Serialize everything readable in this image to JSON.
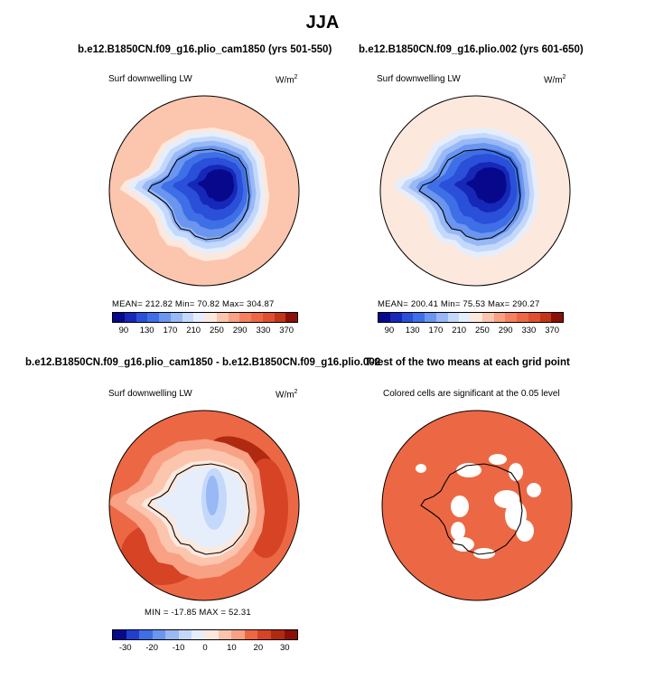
{
  "title": "JJA",
  "panels": [
    {
      "title": "b.e12.B1850CN.f09_g16.plio_cam1850 (yrs 501-550)",
      "variable": "Surf downwelling LW",
      "units": "W/m",
      "units_sup": "2",
      "stats": "MEAN= 212.82   Min=   70.82   Max= 304.87",
      "colorbar_labels": [
        "90",
        "130",
        "170",
        "210",
        "250",
        "290",
        "330",
        "370"
      ]
    },
    {
      "title": "b.e12.B1850CN.f09_g16.plio.002 (yrs 601-650)",
      "variable": "Surf downwelling LW",
      "units": "W/m",
      "units_sup": "2",
      "stats": "MEAN= 200.41   Min=   75.53   Max= 290.27",
      "colorbar_labels": [
        "90",
        "130",
        "170",
        "210",
        "250",
        "290",
        "330",
        "370"
      ]
    },
    {
      "title": "b.e12.B1850CN.f09_g16.plio_cam1850 - b.e12.B1850CN.f09_g16.plio.002",
      "variable": "Surf downwelling LW",
      "units": "W/m",
      "units_sup": "2",
      "stats": "MIN = -17.85  MAX =  52.31",
      "colorbar_labels": [
        "-30",
        "-20",
        "-10",
        "0",
        "10",
        "20",
        "30"
      ]
    },
    {
      "title": "T-test of the two means at each grid point",
      "subtitle": "Colored cells are significant at the 0.05 level"
    }
  ],
  "chart_data": [
    {
      "type": "heatmap",
      "title": "b.e12.B1850CN.f09_g16.plio_cam1850 (yrs 501-550)",
      "variable": "Surf downwelling LW",
      "units": "W/m2",
      "mean": 212.82,
      "min": 70.82,
      "max": 304.87,
      "levels": [
        90,
        130,
        170,
        210,
        250,
        290,
        330,
        370
      ]
    },
    {
      "type": "heatmap",
      "title": "b.e12.B1850CN.f09_g16.plio.002 (yrs 601-650)",
      "variable": "Surf downwelling LW",
      "units": "W/m2",
      "mean": 200.41,
      "min": 75.53,
      "max": 290.27,
      "levels": [
        90,
        130,
        170,
        210,
        250,
        290,
        330,
        370
      ]
    },
    {
      "type": "heatmap",
      "title": "b.e12.B1850CN.f09_g16.plio_cam1850 - b.e12.B1850CN.f09_g16.plio.002",
      "variable": "Surf downwelling LW",
      "units": "W/m2",
      "min": -17.85,
      "max": 52.31,
      "levels": [
        -30,
        -20,
        -10,
        0,
        10,
        20,
        30
      ]
    },
    {
      "type": "heatmap",
      "title": "T-test of the two means at each grid point",
      "note": "Colored cells are significant at the 0.05 level",
      "significance_level": 0.05
    }
  ],
  "colors": {
    "abs_scale": [
      "#08088c",
      "#1628b8",
      "#2a4fd8",
      "#3f6fe6",
      "#6a96ef",
      "#98b8f6",
      "#c4d8fb",
      "#e6eefc",
      "#fde8dd",
      "#fcc5ad",
      "#f9a184",
      "#f4815f",
      "#ec6844",
      "#e04f30",
      "#c13618",
      "#8a0f06"
    ],
    "diff_scale": [
      "#08088c",
      "#1f3fcc",
      "#3f6fe6",
      "#6a96ef",
      "#98b8f6",
      "#c4d8fb",
      "#e6eefc",
      "#fde8dd",
      "#fcc5ad",
      "#f9a184",
      "#ec6844",
      "#d64325",
      "#b02a12",
      "#8a0f06"
    ],
    "significant": "#ec6844"
  }
}
